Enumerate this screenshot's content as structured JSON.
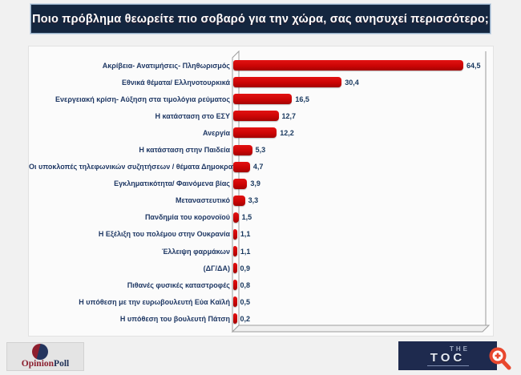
{
  "header": {
    "title": "Ποιο πρόβλημα θεωρείτε πιο σοβαρό για την χώρα, σας ανησυχεί περισσότερο;"
  },
  "chart_data": {
    "type": "bar",
    "orientation": "horizontal",
    "title": "Ποιο πρόβλημα θεωρείτε πιο σοβαρό για την χώρα, σας ανησυχεί περισσότερο;",
    "categories": [
      "Ακρίβεια- Ανατιμήσεις- Πληθωρισμός",
      "Εθνικά θέματα/ Ελληνοτουρκικά",
      "Ενεργειακή κρίση- Αύξηση στα τιμολόγια ρεύματος",
      "Η κατάσταση στο ΕΣΥ",
      "Ανεργία",
      "Η κατάσταση στην Παιδεία",
      "Οι υποκλοπές τηλεφωνικών συζητήσεων / θέματα Δημοκρατίας",
      "Εγκληματικότητα/ Φαινόμενα βίας",
      "Μεταναστευτικό",
      "Πανδημία του κορονοϊού",
      "Η Εξέλιξη του πολέμου στην Ουκρανία",
      "Έλλειψη φαρμάκων",
      "(ΔΓ/ΔΑ)",
      "Πιθανές φυσικές καταστροφές",
      "Η υπόθεση με την ευρωβουλευτή Εύα Καϊλή",
      "Η υπόθεση του βουλευτή Πάτση"
    ],
    "values": [
      64.5,
      30.4,
      16.5,
      12.7,
      12.2,
      5.3,
      4.7,
      3.9,
      3.3,
      1.5,
      1.1,
      1.1,
      0.9,
      0.8,
      0.5,
      0.2
    ],
    "value_labels": [
      "64,5",
      "30,4",
      "16,5",
      "12,7",
      "12,2",
      "5,3",
      "4,7",
      "3,9",
      "3,3",
      "1,5",
      "1,1",
      "1,1",
      "0,9",
      "0,8",
      "0,5",
      "0,2"
    ],
    "bar_color": "#cc0505",
    "label_color": "#1f3864",
    "xlim": [
      0,
      70
    ],
    "grid": false,
    "legend": false,
    "style": "3d-horizontal-bar"
  },
  "branding": {
    "opinion_poll": {
      "part1": "Opinion",
      "part2": "Poll"
    },
    "toc": {
      "line1": "THE",
      "line2": "TOC"
    }
  },
  "colors": {
    "title_bg": "#14263f",
    "title_text": "#ffffff",
    "page_bg": "#f1f1f1",
    "toc_bg": "#1e2a4e",
    "zoom_icon": "#e8472e",
    "opinion_red": "#8b1f2f",
    "opinion_navy": "#1e2f55"
  }
}
